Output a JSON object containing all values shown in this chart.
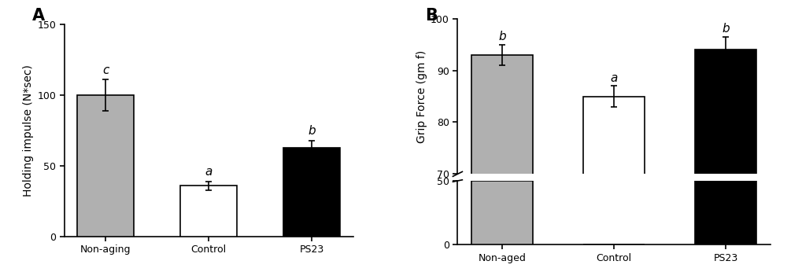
{
  "panel_A": {
    "categories": [
      "Non-aging",
      "Control",
      "PS23"
    ],
    "values": [
      100,
      36,
      63
    ],
    "errors": [
      11,
      3,
      5
    ],
    "colors": [
      "#b0b0b0",
      "#ffffff",
      "#000000"
    ],
    "edgecolors": [
      "#000000",
      "#000000",
      "#000000"
    ],
    "letters": [
      "c",
      "a",
      "b"
    ],
    "ylabel": "Holding impulse (N*sec)",
    "ylim": [
      0,
      150
    ],
    "yticks": [
      0,
      50,
      100,
      150
    ],
    "panel_label": "A"
  },
  "panel_B": {
    "categories": [
      "Non-aged",
      "Control",
      "PS23"
    ],
    "values": [
      93,
      85,
      94
    ],
    "errors": [
      2,
      2,
      2.5
    ],
    "colors": [
      "#b0b0b0",
      "#ffffff",
      "#000000"
    ],
    "edgecolors": [
      "#000000",
      "#000000",
      "#000000"
    ],
    "letters": [
      "b",
      "a",
      "b"
    ],
    "ylabel": "Grip Force (gm f)",
    "upper_ylim": [
      70,
      100
    ],
    "upper_yticks": [
      70,
      80,
      90,
      100
    ],
    "lower_ylim": [
      0,
      50
    ],
    "lower_yticks": [
      0,
      50
    ],
    "lower_bar_values": [
      50,
      0,
      50
    ],
    "panel_label": "B"
  },
  "background_color": "#ffffff",
  "fontsize_label": 10,
  "fontsize_tick": 9,
  "fontsize_letter": 11,
  "bar_width": 0.55,
  "capsize": 3
}
